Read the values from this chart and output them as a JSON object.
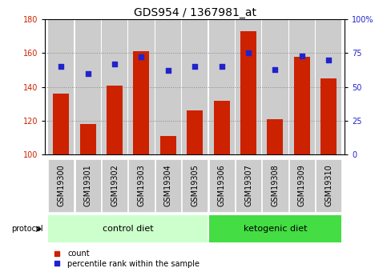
{
  "title": "GDS954 / 1367981_at",
  "samples": [
    "GSM19300",
    "GSM19301",
    "GSM19302",
    "GSM19303",
    "GSM19304",
    "GSM19305",
    "GSM19306",
    "GSM19307",
    "GSM19308",
    "GSM19309",
    "GSM19310"
  ],
  "counts": [
    136,
    118,
    141,
    161,
    111,
    126,
    132,
    173,
    121,
    158,
    145
  ],
  "percentiles": [
    65,
    60,
    67,
    72,
    62,
    65,
    65,
    75,
    63,
    73,
    70
  ],
  "ylim_left": [
    100,
    180
  ],
  "ylim_right": [
    0,
    100
  ],
  "yticks_left": [
    100,
    120,
    140,
    160,
    180
  ],
  "yticks_right": [
    0,
    25,
    50,
    75,
    100
  ],
  "bar_color": "#cc2200",
  "dot_color": "#2222cc",
  "bar_width": 0.6,
  "n_control": 6,
  "n_ketogenic": 5,
  "control_label": "control diet",
  "ketogenic_label": "ketogenic diet",
  "protocol_label": "protocol",
  "legend_count": "count",
  "legend_percentile": "percentile rank within the sample",
  "bg_color_control": "#ccffcc",
  "bg_color_ketogenic": "#44dd44",
  "bar_bg_color": "#cccccc",
  "white_bg": "#ffffff",
  "title_fontsize": 10,
  "tick_fontsize": 7,
  "label_fontsize": 8,
  "right_label_100": "100%"
}
